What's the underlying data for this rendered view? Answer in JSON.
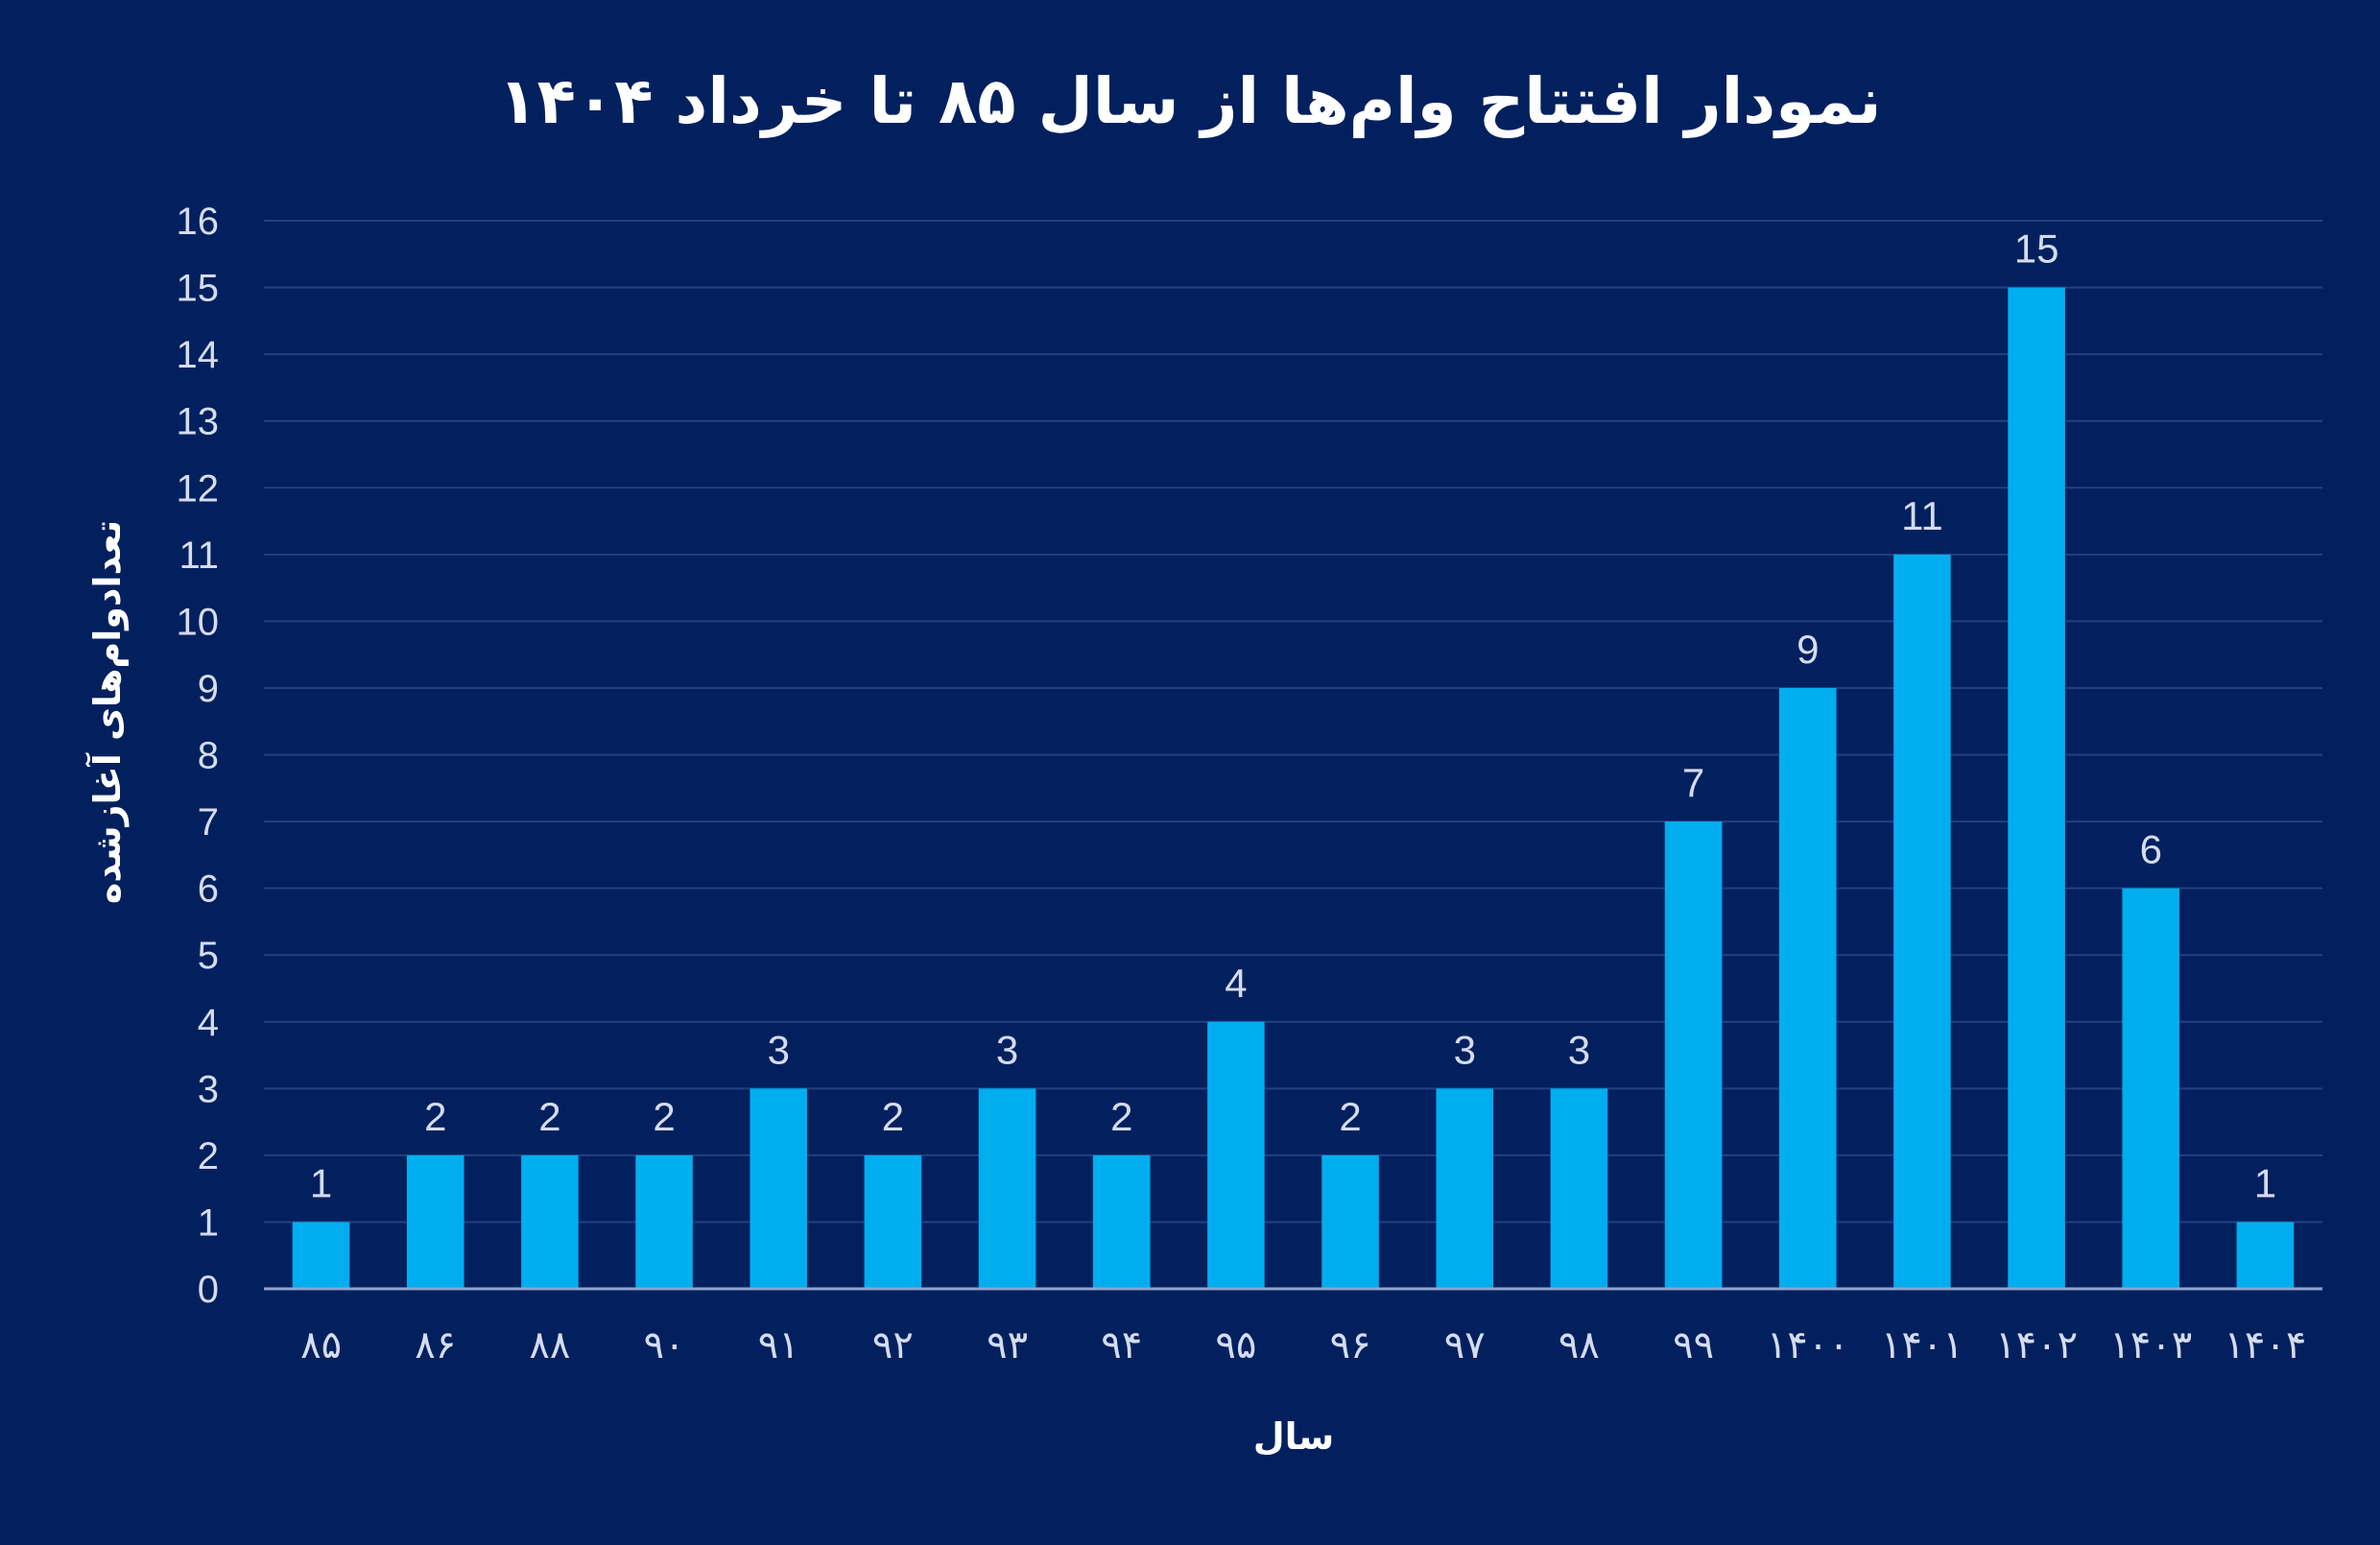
{
  "chart_data": {
    "type": "bar",
    "title": "نمودار افتتاح وام‌ها از سال ۸۵ تا خرداد ۱۴۰۴",
    "xlabel": "سال",
    "ylabel": "تعدادوام‌های آغازشده",
    "categories": [
      "۸۵",
      "۸۶",
      "۸۸",
      "۹۰",
      "۹۱",
      "۹۲",
      "۹۳",
      "۹۴",
      "۹۵",
      "۹۶",
      "۹۷",
      "۹۸",
      "۹۹",
      "۱۴۰۰",
      "۱۴۰۱",
      "۱۴۰۲",
      "۱۴۰۳",
      "۱۴۰۴"
    ],
    "values": [
      1,
      2,
      2,
      2,
      3,
      2,
      3,
      2,
      4,
      2,
      3,
      3,
      7,
      9,
      11,
      15,
      6,
      1
    ],
    "ylim": [
      0,
      16
    ],
    "yticks": [
      0,
      1,
      2,
      3,
      4,
      5,
      6,
      7,
      8,
      9,
      10,
      11,
      12,
      13,
      14,
      15,
      16
    ],
    "grid": true,
    "data_labels": true,
    "colors": {
      "background": "#03205e",
      "bar": "#00aeef",
      "grid": "#24407e",
      "axis": "#8fa3cc"
    }
  }
}
